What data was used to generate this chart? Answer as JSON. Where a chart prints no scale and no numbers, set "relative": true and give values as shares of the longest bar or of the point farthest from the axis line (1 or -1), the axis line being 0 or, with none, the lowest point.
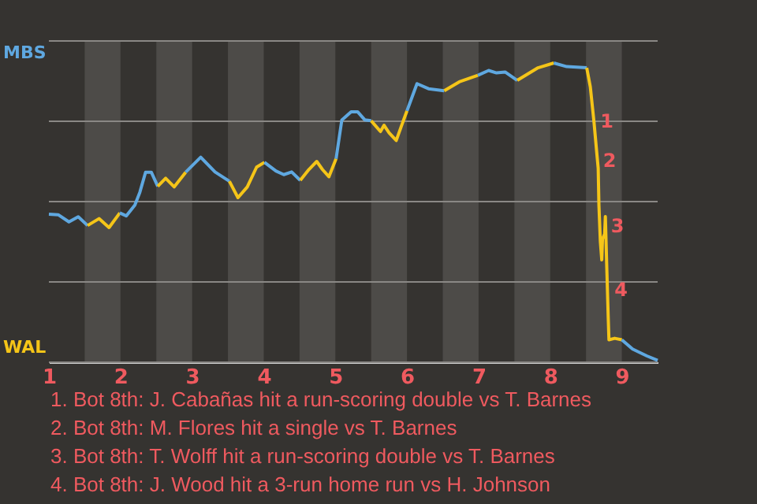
{
  "chart_data": {
    "type": "line",
    "relative": true,
    "series": [
      {
        "color": "#5fa8e0",
        "x": [
          1.0,
          1.13,
          1.28,
          1.41,
          1.54
        ],
        "values": [
          0.495,
          0.493,
          0.469,
          0.486,
          0.457
        ]
      },
      {
        "color": "#f5c518",
        "x": [
          1.54,
          1.7,
          1.84,
          1.99
        ],
        "values": [
          0.457,
          0.48,
          0.45,
          0.499
        ]
      },
      {
        "color": "#5fa8e0",
        "x": [
          1.99,
          2.08,
          2.2,
          2.27,
          2.35,
          2.43,
          2.52
        ],
        "values": [
          0.499,
          0.489,
          0.525,
          0.568,
          0.635,
          0.635,
          0.588
        ]
      },
      {
        "color": "#f5c518",
        "x": [
          2.52,
          2.63,
          2.75,
          2.91
        ],
        "values": [
          0.588,
          0.615,
          0.586,
          0.635
        ]
      },
      {
        "color": "#5fa8e0",
        "x": [
          2.91,
          3.12,
          3.32,
          3.52
        ],
        "values": [
          0.635,
          0.685,
          0.636,
          0.605
        ]
      },
      {
        "color": "#f5c518",
        "x": [
          3.52,
          3.64,
          3.77,
          3.9,
          4.01
        ],
        "values": [
          0.605,
          0.55,
          0.586,
          0.652,
          0.668
        ]
      },
      {
        "color": "#5fa8e0",
        "x": [
          4.01,
          4.17,
          4.28,
          4.39,
          4.51
        ],
        "values": [
          0.668,
          0.639,
          0.627,
          0.636,
          0.608
        ]
      },
      {
        "color": "#f5c518",
        "x": [
          4.51,
          4.63,
          4.74,
          4.82,
          4.91,
          5.01
        ],
        "values": [
          0.608,
          0.644,
          0.671,
          0.644,
          0.62,
          0.68
        ]
      },
      {
        "color": "#5fa8e0",
        "x": [
          5.01,
          5.09,
          5.22,
          5.31,
          5.41,
          5.5
        ],
        "values": [
          0.68,
          0.809,
          0.837,
          0.837,
          0.81,
          0.807
        ]
      },
      {
        "color": "#f5c518",
        "x": [
          5.5,
          5.63,
          5.68,
          5.75,
          5.85,
          5.92,
          6.0
        ],
        "values": [
          0.807,
          0.771,
          0.792,
          0.767,
          0.741,
          0.788,
          0.84
        ]
      },
      {
        "color": "#5fa8e0",
        "x": [
          6.0,
          6.14,
          6.3,
          6.52
        ],
        "values": [
          0.84,
          0.931,
          0.914,
          0.907
        ]
      },
      {
        "color": "#f5c518",
        "x": [
          6.52,
          6.73,
          6.99
        ],
        "values": [
          0.907,
          0.937,
          0.959
        ]
      },
      {
        "color": "#5fa8e0",
        "x": [
          6.99,
          7.14,
          7.25,
          7.37,
          7.54
        ],
        "values": [
          0.959,
          0.975,
          0.967,
          0.97,
          0.942
        ]
      },
      {
        "color": "#f5c518",
        "x": [
          7.54,
          7.83,
          8.05
        ],
        "values": [
          0.942,
          0.984,
          1
        ]
      },
      {
        "color": "#5fa8e0",
        "x": [
          8.05,
          8.23,
          8.51
        ],
        "values": [
          1,
          0.988,
          0.984
        ]
      },
      {
        "color": "#f5c518",
        "x": [
          8.51,
          8.56,
          8.61,
          8.65,
          8.67,
          8.68,
          8.7,
          8.72,
          8.73,
          8.76,
          8.77,
          8.79,
          8.81,
          8.82,
          8.9,
          9.0
        ],
        "values": [
          0.984,
          0.92,
          0.806,
          0.7,
          0.648,
          0.525,
          0.403,
          0.342,
          0.412,
          0.429,
          0.487,
          0.315,
          0.149,
          0.075,
          0.08,
          0.075
        ]
      },
      {
        "color": "#5fa8e0",
        "x": [
          9.0,
          9.15,
          9.35,
          9.5
        ],
        "values": [
          0.075,
          0.044,
          0.021,
          0.006
        ]
      }
    ],
    "xlim": [
      1,
      9.5
    ],
    "xticks": [
      1,
      2,
      3,
      4,
      5,
      6,
      7,
      8,
      9
    ],
    "grid": "y",
    "bands": [
      {
        "axis": "x",
        "from": 1.5,
        "to": 2,
        "color": "#4d4b48"
      },
      {
        "axis": "x",
        "from": 2.5,
        "to": 3,
        "color": "#4d4b48"
      },
      {
        "axis": "x",
        "from": 3.5,
        "to": 4,
        "color": "#4d4b48"
      },
      {
        "axis": "x",
        "from": 4.5,
        "to": 5,
        "color": "#4d4b48"
      },
      {
        "axis": "x",
        "from": 5.5,
        "to": 6,
        "color": "#4d4b48"
      },
      {
        "axis": "x",
        "from": 6.5,
        "to": 7,
        "color": "#4d4b48"
      },
      {
        "axis": "x",
        "from": 7.5,
        "to": 8,
        "color": "#4d4b48"
      },
      {
        "axis": "x",
        "from": 8.5,
        "to": 9,
        "color": "#4d4b48"
      }
    ],
    "annotations": [
      "MBS",
      "WAL",
      {
        "text": "1",
        "x": 8.61,
        "y": 0.806
      },
      {
        "text": "2",
        "x": 8.65,
        "y": 0.675
      },
      {
        "text": "3",
        "x": 8.76,
        "y": 0.456
      },
      {
        "text": "4",
        "x": 8.81,
        "y": 0.241
      },
      "1. Bot 8th: J. Cabañas hit a run-scoring double vs T. Barnes",
      "2. Bot 8th: M. Flores hit a single vs T. Barnes",
      "3. Bot 8th: T. Wolff hit a run-scoring double vs T. Barnes",
      "4. Bot 8th: J. Wood hit a 3-run home run vs H. Johnson"
    ]
  }
}
